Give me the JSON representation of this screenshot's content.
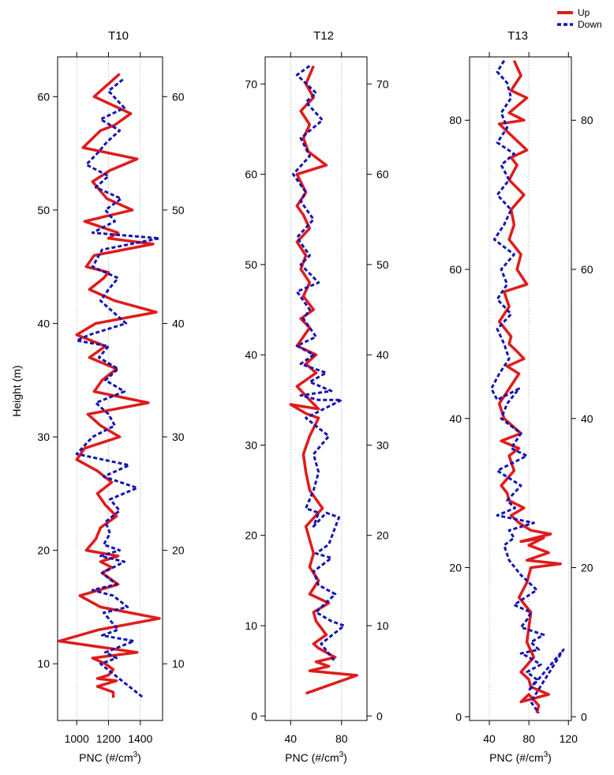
{
  "legend": {
    "up_label": "Up",
    "down_label": "Down",
    "up_color": "#e01b1b",
    "down_color": "#1414b4"
  },
  "ylabel": "Height (m)",
  "chart_data": [
    {
      "type": "line",
      "title": "T10",
      "xlabel": "PNC (#/cm³)",
      "ylabel": "Height (m)",
      "xlim": [
        880,
        1540
      ],
      "ylim": [
        5,
        63.5
      ],
      "xticks": [
        1000,
        1200,
        1400
      ],
      "yticks": [
        10,
        20,
        30,
        40,
        50,
        60
      ],
      "grid": true,
      "series": [
        {
          "name": "Up",
          "x": [
            1270,
            1110,
            1340,
            1240,
            1150,
            1040,
            1380,
            1210,
            1100,
            1190,
            1350,
            1050,
            1260,
            1200,
            1480,
            1110,
            1060,
            1200,
            1170,
            1080,
            1240,
            1500,
            1120,
            1000,
            1180,
            1080,
            1250,
            1160,
            1110,
            1450,
            1070,
            1150,
            1270,
            1050,
            1000,
            1130,
            1220,
            1130,
            1180,
            1250,
            1150,
            1120,
            1060,
            1260,
            1150,
            1220,
            1160,
            1260,
            1020,
            1150,
            1520,
            1140,
            890,
            1380,
            1100,
            1180,
            1230,
            1200,
            1130,
            1250,
            1130,
            1230,
            1230
          ],
          "y": [
            62,
            60,
            58.5,
            57.5,
            57,
            55.5,
            54.5,
            53.5,
            52.5,
            51,
            50,
            49,
            48,
            47.5,
            47,
            46,
            45,
            44.5,
            44,
            43,
            42,
            41,
            40,
            39,
            38,
            37,
            36,
            35,
            34,
            33,
            32,
            31,
            30,
            29,
            28,
            27,
            26,
            25,
            24,
            23,
            22,
            21,
            20,
            19.5,
            19,
            18.5,
            18,
            17,
            16,
            15,
            14,
            13,
            12,
            11,
            10.5,
            10,
            9.5,
            9,
            8.7,
            8.5,
            8,
            7.5,
            7
          ]
        },
        {
          "name": "Down",
          "x": [
            1290,
            1200,
            1300,
            1150,
            1270,
            1190,
            1130,
            1060,
            1200,
            1120,
            1280,
            1180,
            1240,
            1100,
            1520,
            1160,
            1100,
            1260,
            1200,
            1150,
            1230,
            1310,
            1080,
            1000,
            1200,
            1140,
            1260,
            1180,
            1300,
            1120,
            1200,
            1240,
            1100,
            1000,
            1330,
            1170,
            1380,
            1210,
            1270,
            1180,
            1210,
            1170,
            1270,
            1150,
            1300,
            1160,
            1250,
            1100,
            1230,
            1320,
            1170,
            1200,
            1260,
            1160,
            1360,
            1180,
            1250,
            1150,
            1240,
            1420
          ],
          "y": [
            61.5,
            60.5,
            59,
            58,
            57,
            56,
            55,
            54,
            53,
            52,
            51,
            50,
            49,
            48,
            47.5,
            46.5,
            45,
            44,
            43,
            42,
            41,
            40,
            39,
            38.5,
            38,
            37,
            36,
            35,
            34,
            33,
            32,
            31,
            30,
            28.5,
            27.5,
            26.5,
            25.5,
            24.5,
            23.5,
            22.5,
            21.5,
            20.5,
            20,
            19.5,
            19,
            18,
            17,
            16.5,
            16,
            15,
            14.5,
            14,
            13,
            12.5,
            12,
            11,
            10.5,
            10,
            9,
            7
          ]
        }
      ]
    },
    {
      "type": "line",
      "title": "T12",
      "xlabel": "PNC (#/cm³)",
      "ylabel": "Height (m)",
      "xlim": [
        20,
        100
      ],
      "ylim": [
        -0.5,
        73
      ],
      "xticks": [
        40,
        80
      ],
      "yticks": [
        0,
        10,
        20,
        30,
        40,
        50,
        60,
        70
      ],
      "grid": true,
      "series": [
        {
          "name": "Up",
          "x": [
            58,
            52,
            58,
            48,
            55,
            50,
            54,
            68,
            45,
            52,
            45,
            50,
            55,
            45,
            52,
            48,
            55,
            50,
            58,
            48,
            55,
            45,
            60,
            52,
            60,
            45,
            55,
            62,
            40,
            52,
            62,
            55,
            50,
            52,
            55,
            65,
            52,
            55,
            58,
            55,
            62,
            55,
            70,
            58,
            60,
            68,
            58,
            62,
            75,
            60,
            70,
            55,
            92,
            52
          ],
          "y": [
            72,
            70,
            68.5,
            67,
            65.5,
            64,
            62.5,
            61,
            60,
            58,
            56.5,
            55.5,
            54,
            52.5,
            51,
            49.5,
            48,
            46.5,
            45,
            44,
            43,
            41,
            40,
            39,
            38,
            36.5,
            35,
            34,
            34.5,
            33.5,
            33,
            31,
            29,
            27,
            25,
            23,
            21,
            19.5,
            18,
            16.5,
            15,
            13.5,
            12.5,
            11.5,
            10.5,
            9,
            8,
            7.5,
            6.5,
            6,
            5.5,
            5,
            4.5,
            2.5
          ]
        },
        {
          "name": "Down",
          "x": [
            55,
            45,
            60,
            52,
            65,
            48,
            55,
            42,
            52,
            48,
            58,
            45,
            55,
            48,
            62,
            45,
            55,
            50,
            60,
            45,
            58,
            48,
            68,
            55,
            72,
            48,
            62,
            80,
            52,
            70,
            58,
            62,
            58,
            52,
            62,
            58,
            68,
            78,
            70,
            60,
            72,
            58,
            62,
            75,
            60,
            72,
            82,
            64,
            75
          ],
          "y": [
            72,
            71,
            69,
            68,
            66,
            64,
            62,
            60,
            58,
            57,
            55,
            53,
            51,
            50,
            48,
            47,
            45,
            44,
            42,
            41,
            40,
            39,
            38,
            37,
            36,
            35.5,
            35,
            35,
            33,
            31,
            29,
            27,
            25,
            23,
            22.5,
            21,
            22.5,
            22,
            19,
            18,
            17.5,
            16,
            14.5,
            13.5,
            11.5,
            10.5,
            10,
            8,
            6
          ]
        }
      ]
    },
    {
      "type": "line",
      "title": "T13",
      "xlabel": "PNC (#/cm³)",
      "ylabel": "Height (m)",
      "xlim": [
        20,
        123
      ],
      "ylim": [
        -0.5,
        88.5
      ],
      "xticks": [
        40,
        80,
        120
      ],
      "yticks": [
        0,
        20,
        40,
        60,
        80
      ],
      "grid": true,
      "series": [
        {
          "name": "Up",
          "x": [
            65,
            72,
            62,
            78,
            60,
            75,
            50,
            78,
            62,
            68,
            60,
            75,
            62,
            65,
            60,
            72,
            68,
            78,
            55,
            60,
            50,
            62,
            60,
            68,
            75,
            58,
            70,
            60,
            50,
            55,
            72,
            52,
            70,
            60,
            65,
            52,
            58,
            60,
            75,
            62,
            70,
            82,
            102,
            72,
            95,
            80,
            100,
            78,
            112,
            82,
            78,
            70,
            82,
            80,
            78,
            85,
            72,
            80,
            82,
            100,
            72,
            80,
            90,
            88
          ],
          "y": [
            88,
            86,
            84,
            83,
            81,
            80,
            79.5,
            76,
            75,
            74,
            72,
            70,
            68,
            66,
            64,
            62,
            60,
            58,
            57,
            55,
            53,
            51,
            50,
            49,
            48,
            47,
            46,
            44,
            42,
            40,
            38,
            37,
            36,
            35,
            33,
            31,
            30,
            29,
            28,
            27,
            26,
            25,
            24.5,
            23.5,
            24,
            23,
            22,
            21,
            20.5,
            20,
            18,
            16,
            14,
            12,
            10,
            8,
            6,
            5,
            4,
            3,
            2,
            3,
            1.5,
            0.5
          ]
        },
        {
          "name": "Down",
          "x": [
            55,
            48,
            58,
            62,
            52,
            58,
            48,
            65,
            52,
            60,
            48,
            62,
            55,
            45,
            65,
            52,
            58,
            48,
            62,
            48,
            55,
            60,
            50,
            42,
            48,
            70,
            58,
            52,
            72,
            62,
            78,
            48,
            72,
            58,
            66,
            48,
            85,
            60,
            65,
            55,
            60,
            72,
            88,
            65,
            82,
            78,
            72,
            95,
            82,
            90,
            72,
            80,
            92,
            78,
            88,
            80,
            115,
            82,
            90
          ],
          "y": [
            88,
            86.5,
            85,
            83,
            81,
            79,
            77,
            75.5,
            74,
            72,
            70,
            68,
            66,
            64,
            62,
            60,
            58,
            56,
            54,
            52,
            50,
            48,
            46,
            44,
            42.5,
            44,
            42,
            40,
            38,
            36,
            35,
            33,
            31,
            29,
            28,
            27,
            26,
            25,
            24,
            23,
            21,
            19,
            17,
            15,
            14,
            13,
            12,
            11,
            10,
            9,
            8.5,
            8,
            7,
            6,
            5,
            3.5,
            9,
            2,
            0.5
          ]
        }
      ]
    }
  ]
}
